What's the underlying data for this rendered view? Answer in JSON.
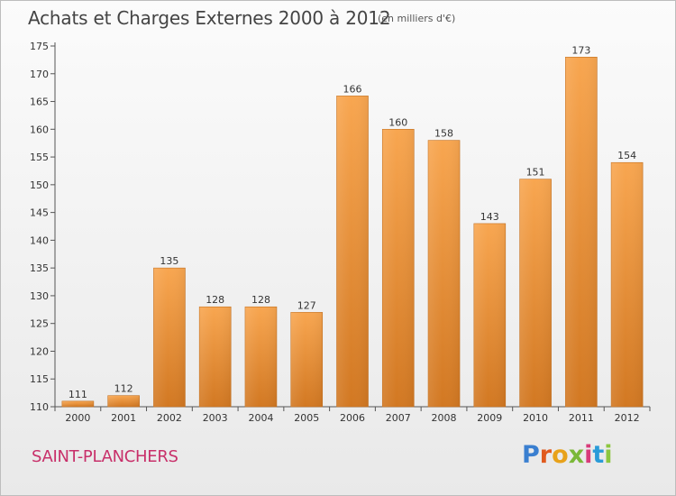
{
  "header": {
    "title": "Achats et Charges Externes 2000 à 2012",
    "unit": "(en milliers d'€)"
  },
  "footer": {
    "commune": "SAINT-PLANCHERS",
    "logo": {
      "letters": [
        "P",
        "r",
        "o",
        "x",
        "i",
        "t",
        "i"
      ],
      "colors": [
        "#3a7fd0",
        "#e05a1e",
        "#e8a21a",
        "#7ab838",
        "#d83b7a",
        "#2a9bd8",
        "#8cc63f"
      ]
    }
  },
  "colors": {
    "bar_top": "#f8a650",
    "bar_bottom": "#d27822",
    "axis": "#555555",
    "grid": "#d0d0d0",
    "text": "#333333"
  },
  "chart_data": {
    "type": "bar",
    "categories": [
      "2000",
      "2001",
      "2002",
      "2003",
      "2004",
      "2005",
      "2006",
      "2007",
      "2008",
      "2009",
      "2010",
      "2011",
      "2012"
    ],
    "values": [
      111,
      112,
      135,
      128,
      128,
      127,
      166,
      160,
      158,
      143,
      151,
      173,
      154
    ],
    "title": "Achats et Charges Externes 2000 à 2012",
    "ylim": [
      110,
      175
    ],
    "yticks": [
      110,
      115,
      120,
      125,
      130,
      135,
      140,
      145,
      150,
      155,
      160,
      165,
      170,
      175
    ],
    "data_labels": true,
    "grid": false,
    "legend": "none"
  }
}
